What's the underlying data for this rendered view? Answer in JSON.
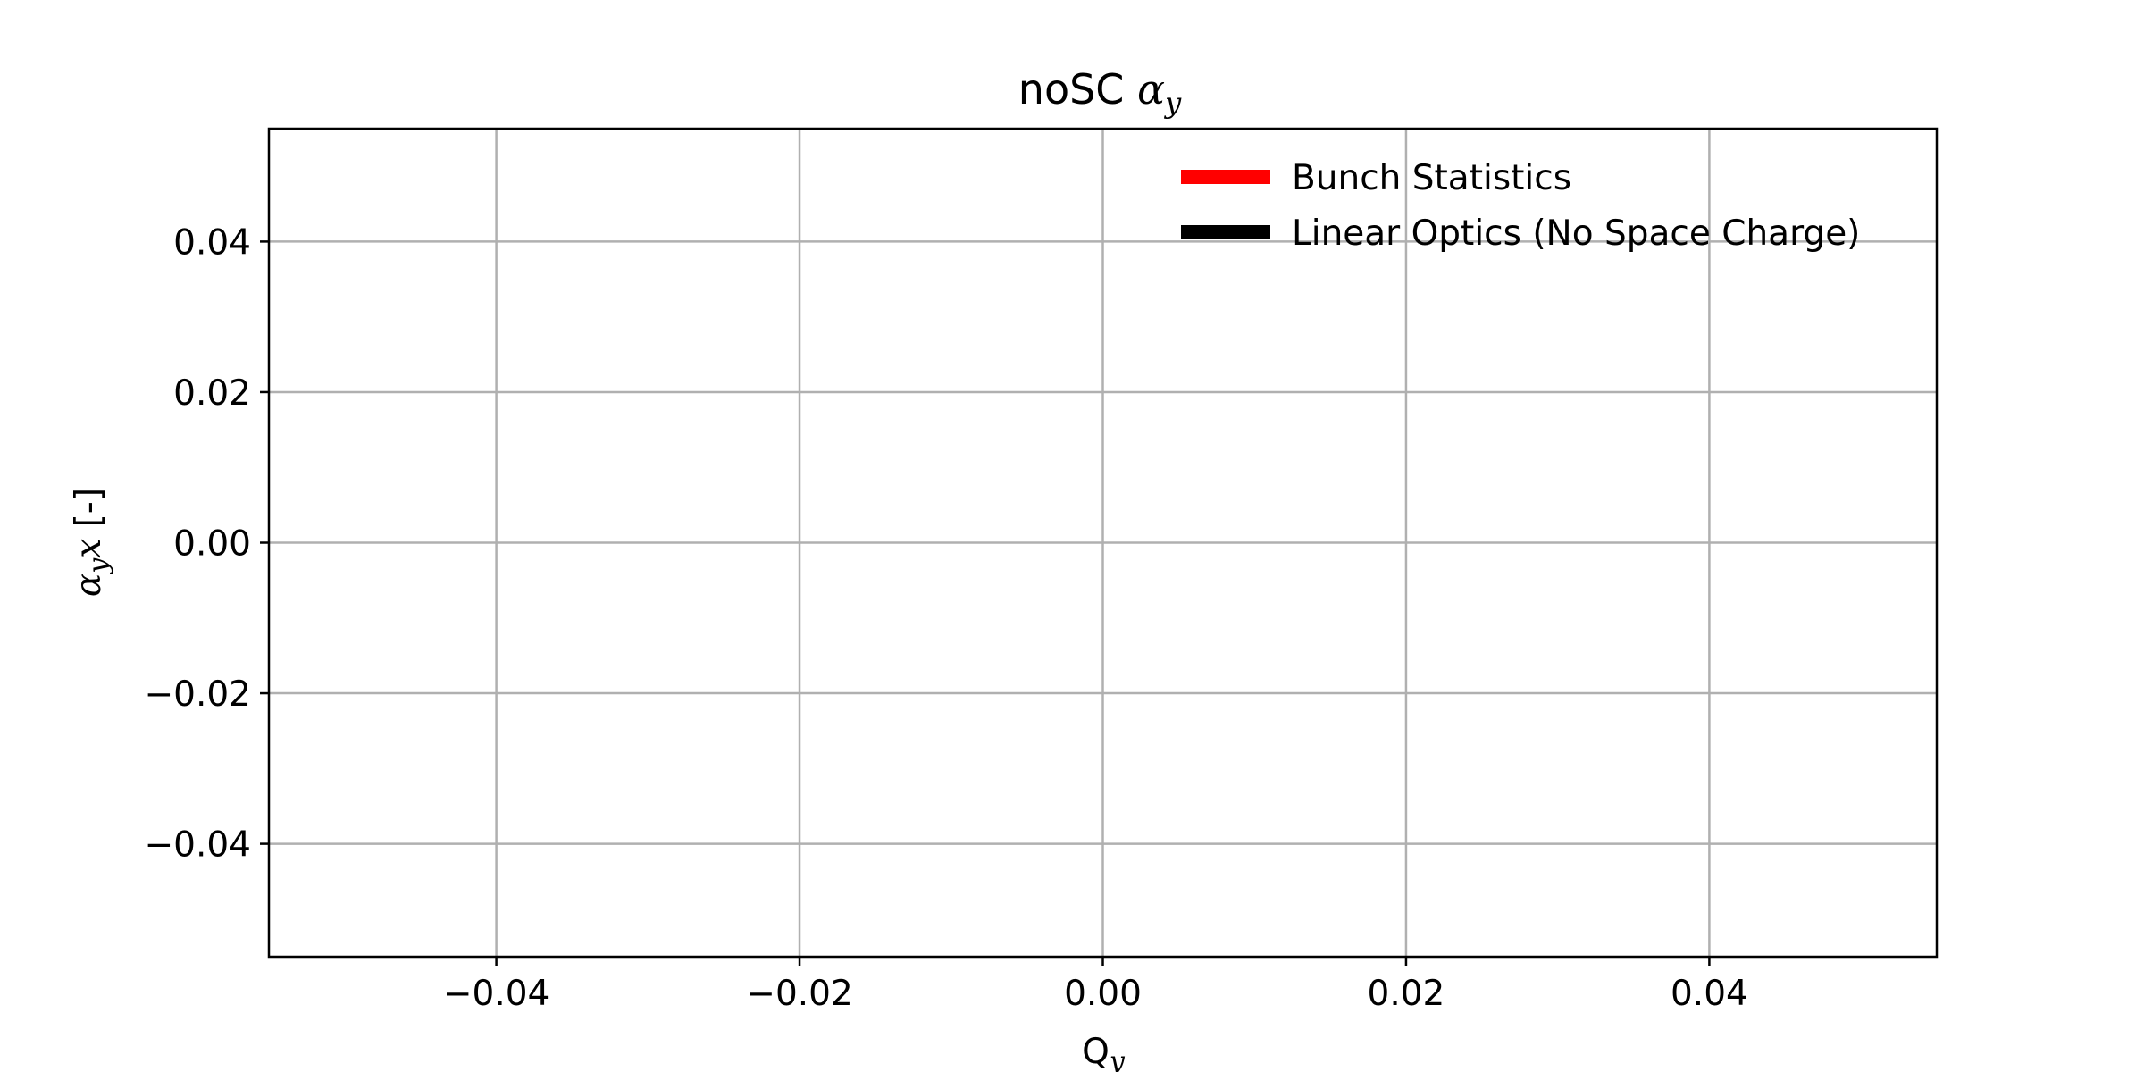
{
  "chart_data": {
    "type": "line",
    "title": {
      "prefix": "noSC ",
      "symbol": "α",
      "subscript": "y"
    },
    "xlabel": {
      "base": "Q",
      "subscript": "y"
    },
    "ylabel": {
      "symbol": "α",
      "subscript": "y",
      "var": "x",
      "suffix": " [-]"
    },
    "xlim": [
      -0.055,
      0.055
    ],
    "ylim": [
      -0.055,
      0.055
    ],
    "xticks": [
      -0.04,
      -0.02,
      0.0,
      0.02,
      0.04
    ],
    "xtick_labels": [
      "−0.04",
      "−0.02",
      "0.00",
      "0.02",
      "0.04"
    ],
    "yticks": [
      0.04,
      0.02,
      0.0,
      -0.02,
      -0.04
    ],
    "ytick_labels": [
      "0.04",
      "0.02",
      "0.00",
      "−0.02",
      "−0.04"
    ],
    "grid": true,
    "legend_position": "top-right",
    "series": [
      {
        "name": "Bunch Statistics",
        "color": "#ff0000",
        "x": [],
        "y": []
      },
      {
        "name": "Linear Optics (No Space Charge)",
        "color": "#000000",
        "x": [],
        "y": []
      }
    ]
  }
}
